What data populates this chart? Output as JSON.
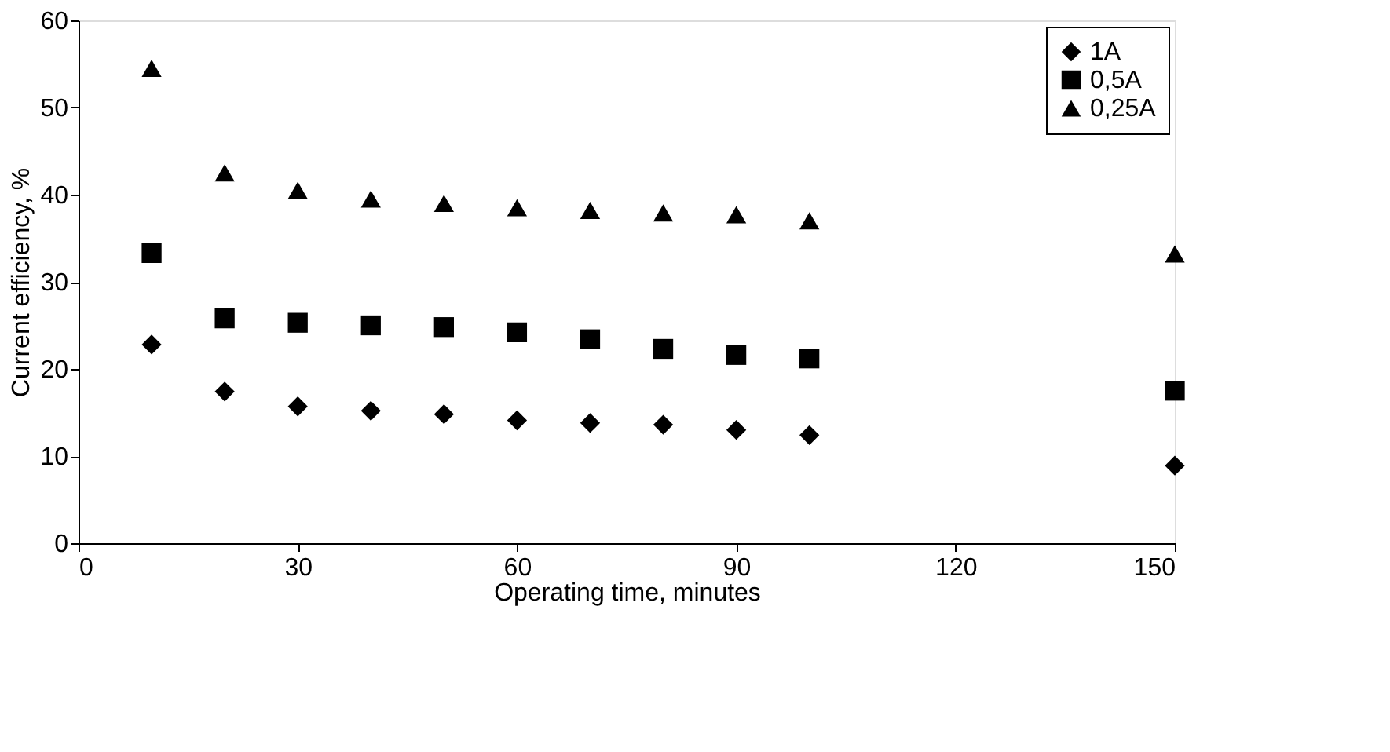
{
  "chart_data": {
    "type": "scatter",
    "xlabel": "Operating time, minutes",
    "ylabel": "Current efficiency, %",
    "x": [
      10,
      20,
      30,
      40,
      50,
      60,
      70,
      80,
      90,
      100,
      150
    ],
    "xlim": [
      0,
      150
    ],
    "xticks": [
      0,
      30,
      60,
      90,
      120,
      150
    ],
    "ylim": [
      0,
      60
    ],
    "yticks": [
      0,
      10,
      20,
      30,
      40,
      50,
      60
    ],
    "grid": false,
    "legend": "top right",
    "series": [
      {
        "name": "1A",
        "color": "#000000",
        "marker": "diamond",
        "values": [
          22.8,
          17.4,
          15.7,
          15.2,
          14.8,
          14.1,
          13.8,
          13.6,
          13.0,
          12.4,
          8.9
        ]
      },
      {
        "name": "0,5A",
        "color": "#000000",
        "marker": "square",
        "values": [
          33.3,
          25.8,
          25.3,
          25.0,
          24.8,
          24.2,
          23.4,
          22.3,
          21.6,
          21.2,
          17.5
        ]
      },
      {
        "name": "0,25A",
        "color": "#000000",
        "marker": "triangle",
        "values": [
          54.5,
          42.5,
          40.5,
          39.5,
          39.0,
          38.5,
          38.2,
          37.9,
          37.7,
          37.0,
          33.2
        ]
      }
    ]
  }
}
